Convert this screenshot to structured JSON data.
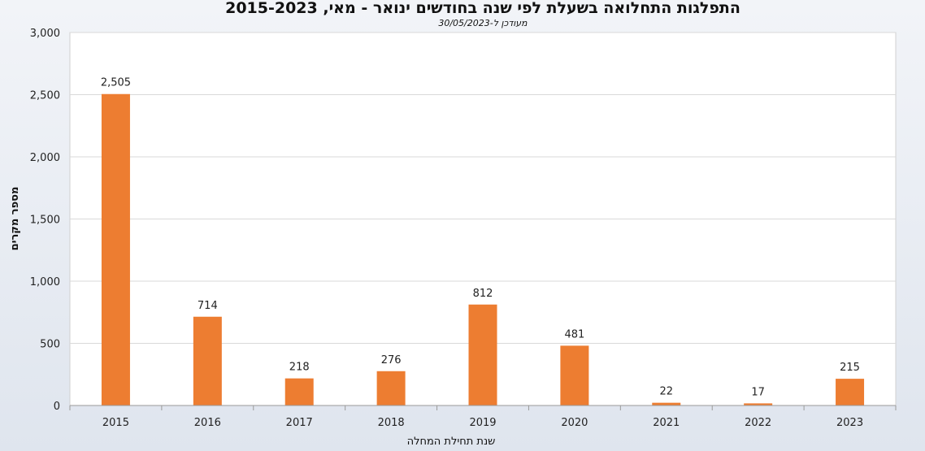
{
  "chart_data": {
    "type": "bar",
    "title": "התפלגות התחלואה בשעלת לפי שנה בחודשים ינואר - מאי, 2015-2023",
    "subtitle": "מעודכן ל-30/05/2023",
    "xlabel": "שנת תחילת המחלה",
    "ylabel": "מספר מקרים",
    "categories": [
      "2015",
      "2016",
      "2017",
      "2018",
      "2019",
      "2020",
      "2021",
      "2022",
      "2023"
    ],
    "values": [
      2505,
      714,
      218,
      276,
      812,
      481,
      22,
      17,
      215
    ],
    "data_labels": [
      "2,505",
      "714",
      "218",
      "276",
      "812",
      "481",
      "22",
      "17",
      "215"
    ],
    "ylim": [
      0,
      3000
    ],
    "y_ticks": [
      0,
      500,
      1000,
      1500,
      2000,
      2500,
      3000
    ],
    "y_tick_labels": [
      "0",
      "500",
      "1,000",
      "1,500",
      "2,000",
      "2,500",
      "3,000"
    ],
    "grid": true,
    "legend": "none",
    "bar_color": "#ed7d31"
  }
}
